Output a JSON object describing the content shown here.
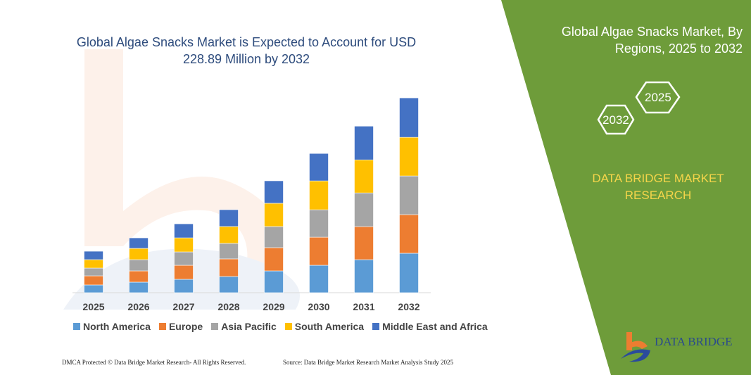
{
  "title": "Global Algae Snacks Market is Expected to Account for USD 228.89 Million by 2032",
  "side": {
    "title": "Global Algae Snacks Market, By Regions, 2025 to 2032",
    "hex_left": "2032",
    "hex_right": "2025",
    "brand": "DATA BRIDGE MARKET RESEARCH",
    "green": "#6e9c3a",
    "brand_color": "#f5d54a"
  },
  "footer": {
    "left": "DMCA Protected © Data Bridge Market Research- All Rights Reserved.",
    "right": "Source: Data Bridge Market Research Market Analysis Study 2025"
  },
  "logo": {
    "text": "DATA BRIDGE"
  },
  "watermark": "DATA BRIDGE",
  "chart_data": {
    "type": "bar",
    "stacked": true,
    "grid": false,
    "legend": "bottom",
    "categories": [
      "2025",
      "2026",
      "2027",
      "2028",
      "2029",
      "2030",
      "2031",
      "2032"
    ],
    "series": [
      {
        "name": "North America",
        "color": "#5b9bd5",
        "values": [
          9.1,
          12.4,
          15.7,
          19.0,
          25.6,
          32.2,
          38.8,
          46.3
        ]
      },
      {
        "name": "Europe",
        "color": "#ed7d31",
        "values": [
          10.7,
          13.2,
          16.5,
          20.7,
          27.3,
          33.0,
          38.8,
          45.4
        ]
      },
      {
        "name": "Asia Pacific",
        "color": "#a5a5a5",
        "values": [
          9.1,
          13.2,
          15.7,
          18.2,
          24.8,
          32.2,
          39.6,
          45.4
        ]
      },
      {
        "name": "South America",
        "color": "#ffc000",
        "values": [
          9.9,
          13.2,
          16.5,
          19.8,
          27.3,
          33.9,
          38.8,
          45.4
        ]
      },
      {
        "name": "Middle East and Africa",
        "color": "#4472c4",
        "values": [
          9.9,
          12.4,
          16.5,
          19.8,
          26.4,
          32.2,
          39.6,
          46.3
        ]
      }
    ]
  }
}
